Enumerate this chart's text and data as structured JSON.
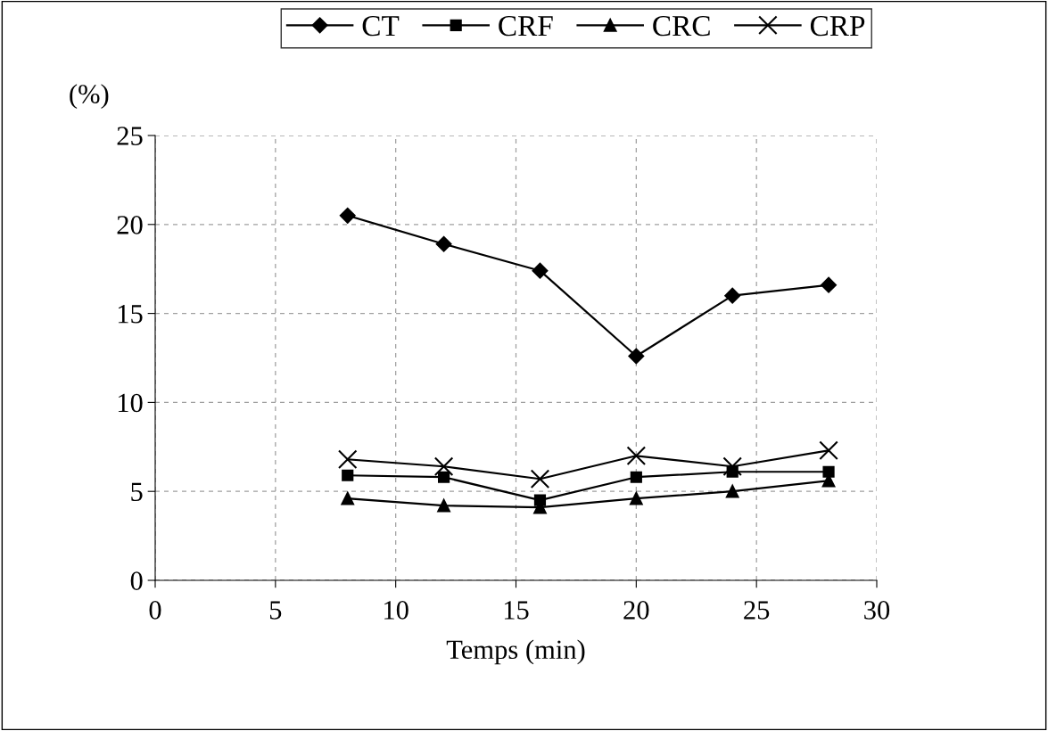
{
  "chart_data": {
    "type": "line",
    "xlabel": "Temps (min)",
    "ylabel": "(%)",
    "x": [
      8,
      12,
      16,
      20,
      24,
      28
    ],
    "series": [
      {
        "name": "CT",
        "color": "#000000",
        "marker": "diamond",
        "values": [
          20.5,
          18.9,
          17.4,
          12.6,
          16.0,
          16.6
        ]
      },
      {
        "name": "CRF",
        "color": "#000000",
        "marker": "square",
        "values": [
          5.9,
          5.8,
          4.5,
          5.8,
          6.1,
          6.1
        ]
      },
      {
        "name": "CRC",
        "color": "#000000",
        "marker": "triangle",
        "values": [
          4.6,
          4.2,
          4.1,
          4.6,
          5.0,
          5.6
        ]
      },
      {
        "name": "CRP",
        "color": "#000000",
        "marker": "cross",
        "values": [
          6.8,
          6.4,
          5.7,
          7.0,
          6.4,
          7.3
        ]
      }
    ],
    "xlim": [
      0,
      30
    ],
    "xticks": [
      0,
      5,
      10,
      15,
      20,
      25,
      30
    ],
    "ylim": [
      0,
      25
    ],
    "yticks": [
      0,
      5,
      10,
      15,
      20,
      25
    ],
    "grid": true,
    "legend": "top",
    "line_style": "solid"
  }
}
